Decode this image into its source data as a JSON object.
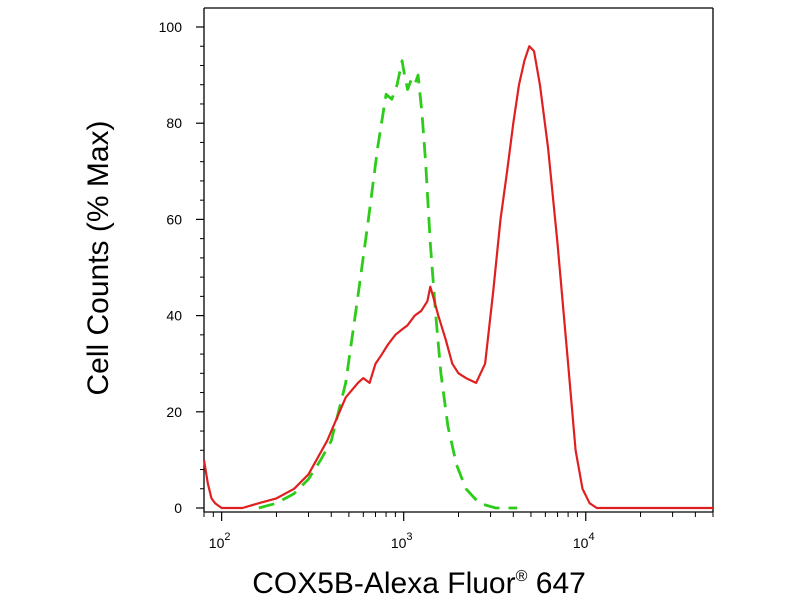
{
  "chart_data": {
    "type": "line",
    "xlabel": "COX5B-Alexa Fluor",
    "xlabel_registered": "®",
    "xlabel_suffix": " 647",
    "ylabel": "Cell Counts (% Max)",
    "x_scale": "log",
    "xlim": [
      80,
      50000
    ],
    "ylim": [
      0,
      100
    ],
    "x_ticks": [
      {
        "base": "10",
        "exp": "2",
        "value": 100
      },
      {
        "base": "10",
        "exp": "3",
        "value": 1000
      },
      {
        "base": "10",
        "exp": "4",
        "value": 10000
      }
    ],
    "y_ticks": [
      {
        "label": "0",
        "value": 0
      },
      {
        "label": "20",
        "value": 20
      },
      {
        "label": "40",
        "value": 40
      },
      {
        "label": "60",
        "value": 60
      },
      {
        "label": "80",
        "value": 80
      },
      {
        "label": "100",
        "value": 100
      }
    ],
    "series": [
      {
        "color": "#2ecc1a",
        "style": "dashed",
        "x": [
          160,
          200,
          250,
          300,
          350,
          400,
          480,
          560,
          640,
          720,
          800,
          860,
          920,
          980,
          1000,
          1050,
          1100,
          1150,
          1200,
          1260,
          1320,
          1400,
          1500,
          1600,
          1750,
          1950,
          2200,
          2600,
          3200,
          4200
        ],
        "y": [
          0,
          1,
          3,
          6,
          10,
          14,
          26,
          44,
          60,
          75,
          86,
          85,
          88,
          93,
          91,
          87,
          89,
          88,
          90,
          82,
          72,
          55,
          40,
          28,
          17,
          9,
          4,
          1,
          0,
          0
        ]
      },
      {
        "color": "#e02020",
        "style": "solid",
        "x": [
          80,
          84,
          88,
          92,
          100,
          110,
          130,
          160,
          200,
          250,
          300,
          380,
          480,
          560,
          600,
          650,
          700,
          760,
          820,
          900,
          970,
          1050,
          1150,
          1250,
          1350,
          1400,
          1450,
          1550,
          1700,
          1850,
          2000,
          2200,
          2500,
          2800,
          3100,
          3400,
          3700,
          4000,
          4300,
          4600,
          4900,
          5200,
          5600,
          6200,
          7000,
          8000,
          8800,
          9600,
          10500,
          11500,
          13000,
          16000,
          25000,
          50000
        ],
        "y": [
          10,
          5,
          2,
          1,
          0,
          0,
          0,
          1,
          2,
          4,
          7,
          14,
          23,
          26,
          27,
          26,
          30,
          32,
          34,
          36,
          37,
          38,
          40,
          41,
          43,
          46,
          44,
          40,
          35,
          30,
          28,
          27,
          26,
          30,
          45,
          60,
          70,
          80,
          88,
          93,
          96,
          95,
          88,
          75,
          55,
          30,
          12,
          4,
          1,
          0,
          0,
          0,
          0,
          0
        ]
      }
    ]
  }
}
